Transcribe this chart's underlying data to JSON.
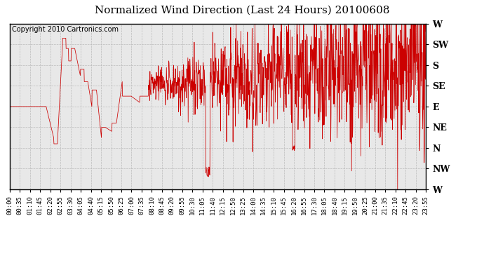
{
  "title": "Normalized Wind Direction (Last 24 Hours) 20100608",
  "copyright_text": "Copyright 2010 Cartronics.com",
  "line_color": "#cc0000",
  "background_color": "#ffffff",
  "plot_background": "#e8e8e8",
  "grid_color": "#bbbbbb",
  "ytick_labels": [
    "W",
    "SW",
    "S",
    "SE",
    "E",
    "NE",
    "N",
    "NW",
    "W"
  ],
  "ytick_values": [
    8,
    7,
    6,
    5,
    4,
    3,
    2,
    1,
    0
  ],
  "ylim": [
    0,
    8
  ],
  "xlim": [
    0,
    24
  ],
  "xtick_labels": [
    "00:00",
    "00:35",
    "01:10",
    "01:45",
    "02:20",
    "02:55",
    "03:30",
    "04:05",
    "04:40",
    "05:15",
    "05:50",
    "06:25",
    "07:00",
    "07:35",
    "08:10",
    "08:45",
    "09:20",
    "09:55",
    "10:30",
    "11:05",
    "11:40",
    "12:15",
    "12:50",
    "13:25",
    "14:00",
    "14:35",
    "15:10",
    "15:45",
    "16:20",
    "16:55",
    "17:30",
    "18:05",
    "18:40",
    "19:15",
    "19:50",
    "20:25",
    "21:00",
    "21:35",
    "22:10",
    "22:45",
    "23:20",
    "23:55"
  ],
  "title_fontsize": 11,
  "copyright_fontsize": 7,
  "tick_fontsize": 6.5,
  "ytick_fontsize": 9,
  "figsize": [
    6.9,
    3.75
  ],
  "dpi": 100
}
